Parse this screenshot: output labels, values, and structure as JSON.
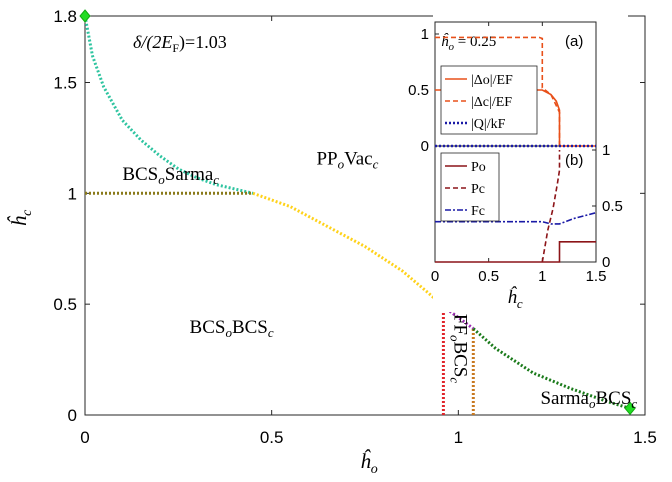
{
  "chart_data": [
    {
      "type": "line",
      "panel": "main phase diagram",
      "xlabel": "ĥ",
      "xlabel_sub": "o",
      "ylabel": "ĥ",
      "ylabel_sub": "c",
      "xlim": [
        0,
        1.5
      ],
      "ylim": [
        0,
        1.8
      ],
      "xticks": [
        "0",
        "0.5",
        "1",
        "1.5"
      ],
      "yticks": [
        "0",
        "0.5",
        "1",
        "1.5",
        "1.8"
      ],
      "annotation": {
        "text_main": "δ/(2E",
        "text_sub": "F",
        "text_tail": ")=1.03"
      },
      "regions": [
        {
          "main": "PP",
          "sub1": "o",
          "mid": "Vac",
          "sub2": "c",
          "x": 0.62,
          "y": 1.13
        },
        {
          "main": "BCS",
          "sub1": "o",
          "mid": "Sarma",
          "sub2": "c",
          "x": 0.1,
          "y": 1.06
        },
        {
          "main": "BCS",
          "sub1": "o",
          "mid": "BCS",
          "sub2": "c",
          "x": 0.28,
          "y": 0.37
        },
        {
          "main": "Sarma",
          "sub1": "o",
          "mid": "BCS",
          "sub2": "c",
          "x": 1.22,
          "y": 0.05
        },
        {
          "main": "FF",
          "sub1": "o",
          "mid": "BCS",
          "sub2": "c",
          "x": 0.99,
          "y": 0.3,
          "vertical": true
        }
      ],
      "series": [
        {
          "color": "#2ec4a0",
          "points": [
            [
              0,
              1.8
            ],
            [
              0.02,
              1.62
            ],
            [
              0.05,
              1.48
            ],
            [
              0.1,
              1.33
            ],
            [
              0.15,
              1.24
            ],
            [
              0.2,
              1.17
            ],
            [
              0.25,
              1.11
            ],
            [
              0.3,
              1.07
            ],
            [
              0.35,
              1.04
            ],
            [
              0.4,
              1.02
            ],
            [
              0.45,
              1.0
            ]
          ]
        },
        {
          "color": "#8a7a1a",
          "points": [
            [
              0,
              1.0
            ],
            [
              0.45,
              1.0
            ]
          ]
        },
        {
          "color": "#ffd21a",
          "points": [
            [
              0.45,
              1.0
            ],
            [
              0.55,
              0.94
            ],
            [
              0.65,
              0.85
            ],
            [
              0.75,
              0.76
            ],
            [
              0.85,
              0.65
            ],
            [
              0.92,
              0.55
            ],
            [
              0.96,
              0.49
            ]
          ]
        },
        {
          "color": "#9b2fb2",
          "points": [
            [
              0.96,
              0.49
            ],
            [
              1.0,
              0.44
            ],
            [
              1.04,
              0.39
            ]
          ]
        },
        {
          "color": "#e0242a",
          "points": [
            [
              0.96,
              0.0
            ],
            [
              0.96,
              0.49
            ]
          ]
        },
        {
          "color": "#c8781e",
          "points": [
            [
              1.04,
              0.0
            ],
            [
              1.04,
              0.39
            ]
          ]
        },
        {
          "color": "#1a7a1a",
          "points": [
            [
              1.04,
              0.39
            ],
            [
              1.1,
              0.3
            ],
            [
              1.2,
              0.19
            ],
            [
              1.3,
              0.12
            ],
            [
              1.4,
              0.06
            ],
            [
              1.46,
              0.03
            ]
          ]
        }
      ],
      "markers": [
        {
          "color": "#22dd22",
          "x": 0,
          "y": 1.8
        },
        {
          "color": "#22dd22",
          "x": 1.46,
          "y": 0.03
        }
      ]
    },
    {
      "type": "line",
      "panel": "inset (a)",
      "panel_label": "(a)",
      "annotation": {
        "text_main": "ĥ",
        "text_sub": "o",
        "text_tail": " = 0.25"
      },
      "xlim": [
        0,
        1.5
      ],
      "ylim": [
        0,
        1
      ],
      "yticks": [
        "0",
        "0.5",
        "1"
      ],
      "legend": [
        {
          "label": "|Δo|/EF",
          "color": "#e8501a",
          "dash": "solid"
        },
        {
          "label": "|Δc|/EF",
          "color": "#e8501a",
          "dash": "dashed"
        },
        {
          "label": "|Q|/kF",
          "color": "#1a1aa6",
          "dash": "dotted"
        }
      ],
      "series": [
        {
          "name": "|Δo|/EF",
          "color": "#e8501a",
          "style": "solid",
          "points": [
            [
              0,
              0.5
            ],
            [
              0.9,
              0.5
            ],
            [
              1.0,
              0.5
            ],
            [
              1.08,
              0.46
            ],
            [
              1.13,
              0.4
            ],
            [
              1.16,
              0.32
            ],
            [
              1.16,
              0.0
            ],
            [
              1.5,
              0.0
            ]
          ]
        },
        {
          "name": "|Δc|/EF",
          "color": "#e8501a",
          "style": "dashed",
          "points": [
            [
              0,
              0.97
            ],
            [
              0.97,
              0.97
            ],
            [
              1.0,
              0.96
            ],
            [
              1.0,
              0.52
            ],
            [
              1.08,
              0.46
            ],
            [
              1.12,
              0.38
            ],
            [
              1.16,
              0.3
            ],
            [
              1.16,
              0.0
            ]
          ]
        },
        {
          "name": "|Q|/kF",
          "color": "#1a1aa6",
          "style": "dotted",
          "points": [
            [
              0,
              0.0
            ],
            [
              1.5,
              0.0
            ]
          ]
        }
      ]
    },
    {
      "type": "line",
      "panel": "inset (b)",
      "panel_label": "(b)",
      "xlabel": "ĥ",
      "xlabel_sub": "c",
      "xlim": [
        0,
        1.5
      ],
      "ylim": [
        0,
        1
      ],
      "xticks": [
        "0",
        "0.5",
        "1",
        "1.5"
      ],
      "yticks_right": [
        "0",
        "0.5",
        "1"
      ],
      "legend": [
        {
          "label": "Po",
          "color": "#8c1418",
          "dash": "solid"
        },
        {
          "label": "Pc",
          "color": "#8c1418",
          "dash": "dashed"
        },
        {
          "label": "Fc",
          "color": "#1a1aa6",
          "dash": "dashdot"
        }
      ],
      "series": [
        {
          "name": "Po",
          "color": "#8c1418",
          "style": "solid",
          "points": [
            [
              0,
              0.0
            ],
            [
              1.16,
              0.0
            ],
            [
              1.16,
              0.18
            ],
            [
              1.5,
              0.18
            ]
          ]
        },
        {
          "name": "Pc",
          "color": "#8c1418",
          "style": "dashed",
          "points": [
            [
              1.0,
              0.0
            ],
            [
              1.05,
              0.28
            ],
            [
              1.1,
              0.48
            ],
            [
              1.14,
              0.7
            ],
            [
              1.16,
              0.82
            ],
            [
              1.16,
              1.0
            ]
          ]
        },
        {
          "name": "Fc",
          "color": "#1a1aa6",
          "style": "dashdot",
          "points": [
            [
              0,
              0.36
            ],
            [
              1.0,
              0.36
            ],
            [
              1.08,
              0.34
            ],
            [
              1.16,
              0.34
            ],
            [
              1.3,
              0.39
            ],
            [
              1.5,
              0.44
            ]
          ]
        }
      ]
    }
  ]
}
